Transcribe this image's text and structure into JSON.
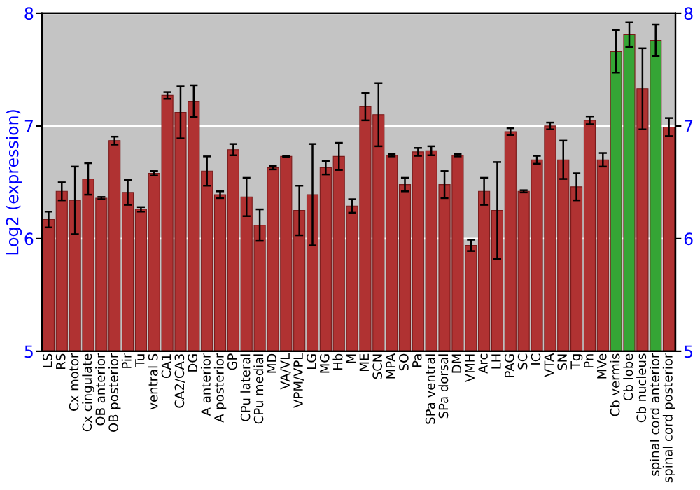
{
  "chart_data": {
    "type": "bar",
    "ylabel": "Log2 (expression)",
    "categories": [
      "LS",
      "RS",
      "Cx motor",
      "Cx cingulate",
      "OB anterior",
      "OB posterior",
      "Pir",
      "Tu",
      "ventral S",
      "CA1",
      "CA2/CA3",
      "DG",
      "A anterior",
      "A posterior",
      "GP",
      "CPu lateral",
      "CPu medial",
      "MD",
      "VA/VL",
      "VPM/VPL",
      "LG",
      "MG",
      "Hb",
      "M",
      "ME",
      "SCN",
      "MPA",
      "SO",
      "Pa",
      "SPa ventral",
      "SPa dorsal",
      "DM",
      "VMH",
      "Arc",
      "LH",
      "PAG",
      "SC",
      "IC",
      "VTA",
      "SN",
      "Tg",
      "Pn",
      "MVe",
      "Cb vermis",
      "Cb lobe",
      "Cb nucleus",
      "spinal cord anterior",
      "spinal cord posterior"
    ],
    "values": [
      6.17,
      6.42,
      6.34,
      6.53,
      6.36,
      6.87,
      6.41,
      6.26,
      6.58,
      7.27,
      7.12,
      7.22,
      6.6,
      6.39,
      6.79,
      6.37,
      6.12,
      6.63,
      6.73,
      6.25,
      6.39,
      6.63,
      6.73,
      6.29,
      7.17,
      7.1,
      6.74,
      6.48,
      6.77,
      6.78,
      6.48,
      6.74,
      5.94,
      6.42,
      6.25,
      6.95,
      6.42,
      6.7,
      7.0,
      6.7,
      6.46,
      7.05,
      6.7,
      7.66,
      7.81,
      7.33,
      7.76,
      6.99
    ],
    "errors": [
      0.07,
      0.08,
      0.3,
      0.14,
      0.01,
      0.035,
      0.11,
      0.02,
      0.02,
      0.03,
      0.23,
      0.14,
      0.13,
      0.03,
      0.05,
      0.17,
      0.14,
      0.015,
      0.005,
      0.22,
      0.45,
      0.06,
      0.12,
      0.06,
      0.12,
      0.28,
      0.01,
      0.06,
      0.035,
      0.04,
      0.12,
      0.01,
      0.05,
      0.12,
      0.43,
      0.03,
      0.01,
      0.035,
      0.03,
      0.17,
      0.12,
      0.035,
      0.06,
      0.19,
      0.11,
      0.36,
      0.14,
      0.08
    ],
    "colors": [
      "#b03232",
      "#b03232",
      "#b03232",
      "#b03232",
      "#b03232",
      "#b03232",
      "#b03232",
      "#b03232",
      "#b03232",
      "#b03232",
      "#b03232",
      "#b03232",
      "#b03232",
      "#b03232",
      "#b03232",
      "#b03232",
      "#b03232",
      "#b03232",
      "#b03232",
      "#b03232",
      "#b03232",
      "#b03232",
      "#b03232",
      "#b03232",
      "#b03232",
      "#b03232",
      "#b03232",
      "#b03232",
      "#b03232",
      "#b03232",
      "#b03232",
      "#b03232",
      "#b03232",
      "#b03232",
      "#b03232",
      "#b03232",
      "#b03232",
      "#b03232",
      "#b03232",
      "#b03232",
      "#b03232",
      "#b03232",
      "#b03232",
      "#35a535",
      "#35a535",
      "#b03232",
      "#35a535",
      "#b03232"
    ],
    "ylim": [
      5,
      8
    ],
    "yticks": [
      5,
      6,
      7,
      8
    ],
    "y2lim": [
      5,
      8
    ],
    "y2ticks": [
      5,
      6,
      7,
      8
    ],
    "grid": "y"
  }
}
